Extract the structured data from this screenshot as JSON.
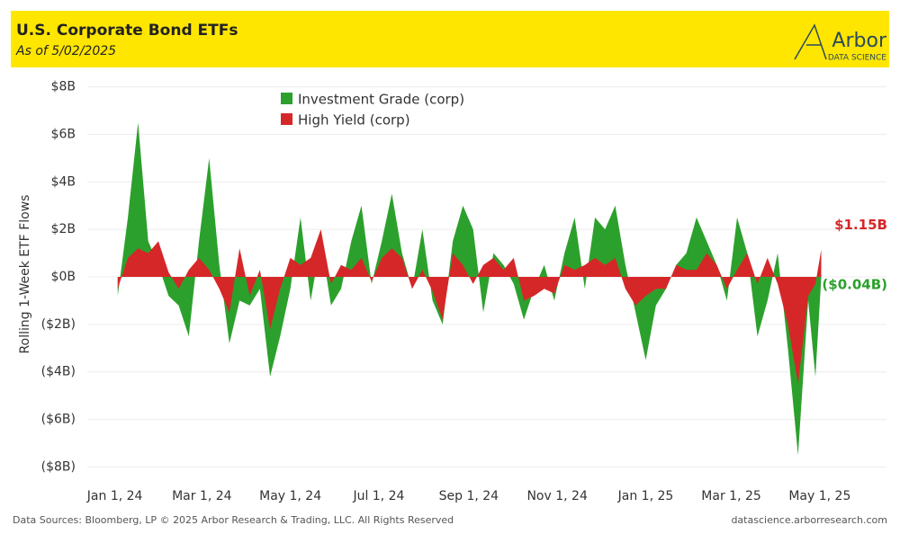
{
  "header": {
    "title": "U.S. Corporate Bond ETFs",
    "subtitle": "As of 5/02/2025",
    "logo": "Arbor",
    "logo_sub": "DATA SCIENCE"
  },
  "footer": {
    "left": "Data Sources: Bloomberg, LP © 2025 Arbor Research & Trading, LLC. All Rights Reserved",
    "right": "datascience.arborresearch.com"
  },
  "chart_data": {
    "type": "area",
    "y_label": "Rolling 1-Week ETF Flows",
    "xlim": [
      "2023-12-13",
      "2025-06-16"
    ],
    "xticks": [
      {
        "value": "2024-01-01",
        "label": "Jan 1, 24"
      },
      {
        "value": "2024-03-01",
        "label": "Mar 1, 24"
      },
      {
        "value": "2024-05-01",
        "label": "May 1, 24"
      },
      {
        "value": "2024-07-01",
        "label": "Jul 1, 24"
      },
      {
        "value": "2024-09-01",
        "label": "Sep 1, 24"
      },
      {
        "value": "2024-11-01",
        "label": "Nov 1, 24"
      },
      {
        "value": "2025-01-01",
        "label": "Jan 1, 25"
      },
      {
        "value": "2025-03-01",
        "label": "Mar 1, 25"
      },
      {
        "value": "2025-05-01",
        "label": "May 1, 25"
      }
    ],
    "ylim": [
      -8.4,
      8.4
    ],
    "yticks": [
      {
        "value": 8,
        "label": "$8B"
      },
      {
        "value": 6,
        "label": "$6B"
      },
      {
        "value": 4,
        "label": "$4B"
      },
      {
        "value": 2,
        "label": "$2B"
      },
      {
        "value": 0,
        "label": "$0B"
      },
      {
        "value": -2,
        "label": "($2B)"
      },
      {
        "value": -4,
        "label": "($4B)"
      },
      {
        "value": -6,
        "label": "($6B)"
      },
      {
        "value": -8,
        "label": "($8B)"
      }
    ],
    "grid": true,
    "x": [
      "2024-01-03",
      "2024-01-10",
      "2024-01-17",
      "2024-01-24",
      "2024-01-31",
      "2024-02-07",
      "2024-02-14",
      "2024-02-21",
      "2024-02-28",
      "2024-03-06",
      "2024-03-13",
      "2024-03-20",
      "2024-03-27",
      "2024-04-03",
      "2024-04-10",
      "2024-04-17",
      "2024-04-24",
      "2024-05-01",
      "2024-05-08",
      "2024-05-15",
      "2024-05-22",
      "2024-05-29",
      "2024-06-05",
      "2024-06-12",
      "2024-06-19",
      "2024-06-26",
      "2024-07-03",
      "2024-07-10",
      "2024-07-17",
      "2024-07-24",
      "2024-07-31",
      "2024-08-07",
      "2024-08-14",
      "2024-08-21",
      "2024-08-28",
      "2024-09-04",
      "2024-09-11",
      "2024-09-18",
      "2024-09-25",
      "2024-10-02",
      "2024-10-09",
      "2024-10-16",
      "2024-10-23",
      "2024-10-30",
      "2024-11-06",
      "2024-11-13",
      "2024-11-20",
      "2024-11-27",
      "2024-12-04",
      "2024-12-11",
      "2024-12-18",
      "2024-12-25",
      "2025-01-01",
      "2025-01-08",
      "2025-01-15",
      "2025-01-22",
      "2025-01-29",
      "2025-02-05",
      "2025-02-12",
      "2025-02-19",
      "2025-02-26",
      "2025-03-05",
      "2025-03-12",
      "2025-03-19",
      "2025-03-26",
      "2025-04-02",
      "2025-04-09",
      "2025-04-16",
      "2025-04-23",
      "2025-04-28",
      "2025-05-02"
    ],
    "series": [
      {
        "name": "Investment Grade (corp)",
        "color": "#2ca02c",
        "end_label": "($0.04B)",
        "values": [
          -0.8,
          2.5,
          6.5,
          1.5,
          0.5,
          -0.8,
          -1.2,
          -2.5,
          1.5,
          5.0,
          0.5,
          -2.8,
          -1.0,
          -1.2,
          -0.5,
          -4.2,
          -2.5,
          -0.5,
          2.5,
          -1.0,
          1.5,
          -1.2,
          -0.5,
          1.5,
          3.0,
          -0.3,
          1.5,
          3.5,
          1.0,
          -0.5,
          2.0,
          -1.0,
          -2.0,
          1.5,
          3.0,
          2.0,
          -1.5,
          1.0,
          0.5,
          -0.3,
          -1.8,
          -0.5,
          0.5,
          -1.0,
          1.0,
          2.5,
          -0.5,
          2.5,
          2.0,
          3.0,
          0.5,
          -1.5,
          -3.5,
          -1.2,
          -0.5,
          0.5,
          1.0,
          2.5,
          1.5,
          0.5,
          -1.0,
          2.5,
          1.0,
          -2.5,
          -1.0,
          1.0,
          -3.0,
          -7.5,
          -1.0,
          -4.2,
          -0.04
        ]
      },
      {
        "name": "High Yield (corp)",
        "color": "#d62728",
        "end_label": "$1.15B",
        "values": [
          -0.5,
          0.8,
          1.2,
          1.0,
          1.5,
          0.2,
          -0.5,
          0.3,
          0.8,
          0.3,
          -0.5,
          -1.5,
          1.2,
          -0.8,
          0.3,
          -2.2,
          -0.5,
          0.8,
          0.5,
          0.8,
          2.0,
          -0.3,
          0.5,
          0.3,
          0.8,
          -0.2,
          0.8,
          1.2,
          0.8,
          -0.5,
          0.3,
          -0.6,
          -1.8,
          1.0,
          0.5,
          -0.3,
          0.5,
          0.8,
          0.3,
          0.8,
          -1.0,
          -0.8,
          -0.5,
          -0.7,
          0.5,
          0.3,
          0.5,
          0.8,
          0.5,
          0.8,
          -0.5,
          -1.2,
          -0.8,
          -0.5,
          -0.5,
          0.5,
          0.3,
          0.3,
          1.0,
          0.5,
          -0.5,
          0.3,
          1.0,
          -0.3,
          0.8,
          -0.3,
          -2.0,
          -4.5,
          -0.8,
          -0.3,
          1.15
        ]
      }
    ]
  }
}
